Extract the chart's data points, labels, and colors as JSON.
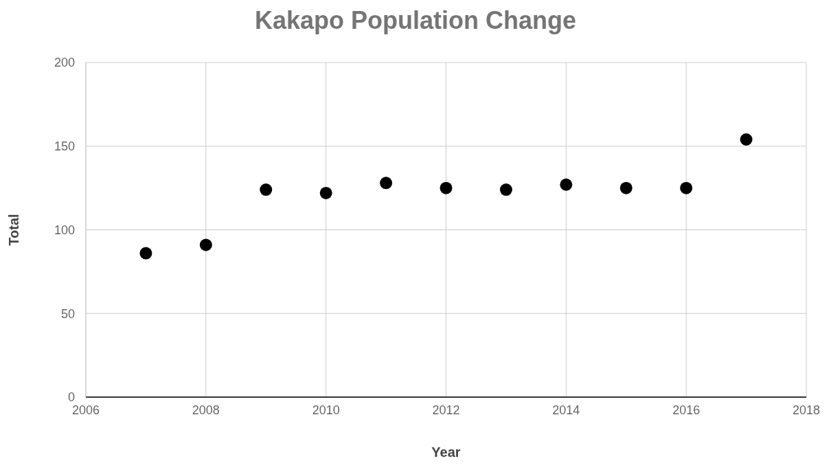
{
  "chart_data": {
    "type": "scatter",
    "title": "Kakapo Population Change",
    "xlabel": "Year",
    "ylabel": "Total",
    "x": [
      2007,
      2008,
      2009,
      2010,
      2011,
      2012,
      2013,
      2014,
      2015,
      2016,
      2017
    ],
    "series": [
      {
        "color": "#000000",
        "values": [
          86,
          91,
          124,
          122,
          128,
          125,
          124,
          127,
          125,
          125,
          154
        ]
      }
    ],
    "xlim": [
      2006,
      2018
    ],
    "xticks": [
      2006,
      2008,
      2010,
      2012,
      2014,
      2016,
      2018
    ],
    "ylim": [
      0,
      200
    ],
    "yticks": [
      0,
      50,
      100,
      150,
      200
    ],
    "grid": true,
    "marker": "circle"
  }
}
